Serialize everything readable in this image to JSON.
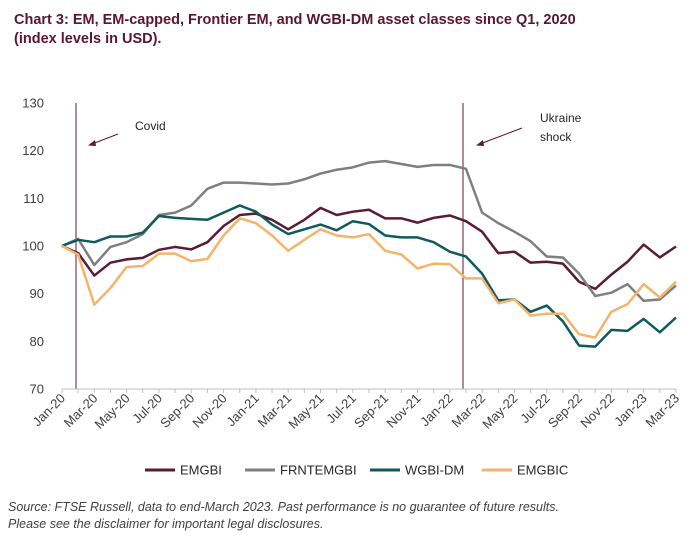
{
  "chart_data": {
    "type": "line",
    "title": [
      "Chart 3: EM, EM-capped, Frontier EM, and WGBI-DM asset classes since Q1, 2020",
      "(index levels in USD)."
    ],
    "categories": [
      "Jan-20",
      null,
      "Mar-20",
      null,
      "May-20",
      null,
      "Jul-20",
      null,
      "Sep-20",
      null,
      "Nov-20",
      null,
      "Jan-21",
      null,
      "Mar-21",
      null,
      "May-21",
      null,
      "Jul-21",
      null,
      "Sep-21",
      null,
      "Nov-21",
      null,
      "Jan-22",
      null,
      "Mar-22",
      null,
      "May-22",
      null,
      "Jul-22",
      null,
      "Sep-22",
      null,
      "Nov-22",
      null,
      "Jan-23",
      null,
      "Mar-23"
    ],
    "series": [
      {
        "name": "EMGBI",
        "color": "#5c1a33",
        "values": [
          100,
          98.5,
          93.8,
          96.5,
          97.2,
          97.5,
          99.2,
          99.8,
          99.3,
          100.8,
          104.2,
          106.5,
          106.8,
          105.5,
          103.5,
          105.5,
          108,
          106.5,
          107.2,
          107.6,
          105.8,
          105.8,
          104.9,
          105.9,
          106.4,
          105.2,
          103,
          98.5,
          98.8,
          96.5,
          96.7,
          96.3,
          92.5,
          91,
          94,
          96.7,
          100.3,
          97.6,
          99.9
        ]
      },
      {
        "name": "FRNTEMGBI",
        "color": "#7f7f7f",
        "values": [
          100,
          101.5,
          96,
          99.8,
          100.8,
          102.5,
          106.5,
          107,
          108.5,
          112,
          113.3,
          113.3,
          113.1,
          112.9,
          113.1,
          114,
          115.2,
          116,
          116.5,
          117.5,
          117.8,
          117.2,
          116.6,
          117,
          117,
          116.2,
          107,
          104.8,
          103,
          101,
          97.8,
          97.6,
          94.2,
          89.5,
          90.2,
          92,
          88.5,
          88.8,
          91.7
        ]
      },
      {
        "name": "WGBI-DM",
        "color": "#0f5a5a",
        "values": [
          100,
          101.3,
          100.8,
          102,
          102,
          102.8,
          106.3,
          105.9,
          105.7,
          105.5,
          107,
          108.5,
          107.2,
          104.5,
          102.5,
          103.5,
          104.5,
          103.3,
          105.2,
          104.6,
          102.2,
          101.8,
          101.8,
          100.8,
          98.8,
          97.8,
          94.2,
          88.6,
          88.8,
          86.2,
          87.5,
          84.2,
          79.1,
          78.9,
          82.4,
          82.2,
          84.7,
          81.9,
          85
        ]
      },
      {
        "name": "EMGBIC",
        "color": "#f5b36b",
        "values": [
          100,
          98.2,
          87.7,
          91.2,
          95.6,
          95.8,
          98.4,
          98.4,
          96.8,
          97.3,
          102.2,
          105.8,
          104.8,
          102.2,
          99,
          101.3,
          103.5,
          102.2,
          101.8,
          102.5,
          99,
          98.2,
          95.3,
          96.3,
          96.2,
          93.2,
          93.2,
          88,
          88.8,
          85.4,
          85.8,
          85.8,
          81.5,
          80.8,
          86.2,
          87.8,
          92,
          89.2,
          92.5
        ]
      }
    ],
    "ylim": [
      70,
      130
    ],
    "yticks": [
      70,
      80,
      90,
      100,
      110,
      120,
      130
    ],
    "annotations": [
      [
        "Covid"
      ],
      [
        "Ukraine",
        "shock"
      ]
    ],
    "notes": [
      "Source: FTSE Russell, data to end-March 2023. Past performance is no guarantee of future results.",
      "Please see the disclaimer for important legal disclosures."
    ],
    "legend": "bottom"
  }
}
